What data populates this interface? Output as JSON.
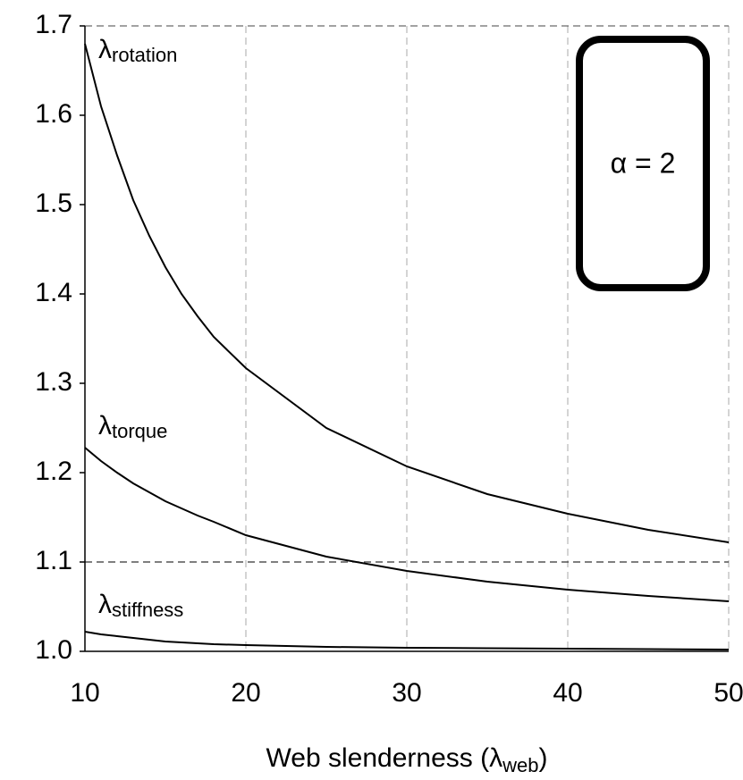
{
  "chart_data": {
    "type": "line",
    "x": [
      10,
      11,
      12,
      13,
      14,
      15,
      16,
      17,
      18,
      20,
      25,
      30,
      35,
      40,
      45,
      50
    ],
    "series": [
      {
        "symbol": "λ",
        "subscript": "rotation",
        "color": "#000000",
        "values": [
          1.68,
          1.61,
          1.555,
          1.505,
          1.465,
          1.43,
          1.4,
          1.375,
          1.352,
          1.317,
          1.25,
          1.207,
          1.176,
          1.154,
          1.136,
          1.122
        ]
      },
      {
        "symbol": "λ",
        "subscript": "torque",
        "color": "#000000",
        "values": [
          1.228,
          1.213,
          1.2,
          1.188,
          1.178,
          1.168,
          1.16,
          1.152,
          1.145,
          1.13,
          1.106,
          1.09,
          1.078,
          1.069,
          1.062,
          1.056
        ]
      },
      {
        "symbol": "λ",
        "subscript": "stiffness",
        "color": "#000000",
        "values": [
          1.022,
          1.019,
          1.017,
          1.015,
          1.013,
          1.011,
          1.01,
          1.009,
          1.008,
          1.007,
          1.005,
          1.004,
          1.0035,
          1.003,
          1.0025,
          1.002
        ]
      }
    ],
    "xlabel": {
      "text": "Web slenderness (",
      "symbol": "λ",
      "subscript": "web",
      "close": ")"
    },
    "annotation": "α = 2",
    "xlim": [
      10,
      50
    ],
    "xticks": [
      10,
      20,
      30,
      40,
      50
    ],
    "ylim": [
      1.0,
      1.7
    ],
    "yticks": [
      {
        "value": 1.0,
        "label": "1.0"
      },
      1.1,
      1.2,
      1.3,
      1.4,
      1.5,
      1.6,
      1.7
    ],
    "reference_lines": [
      1.1
    ],
    "grid": true
  }
}
